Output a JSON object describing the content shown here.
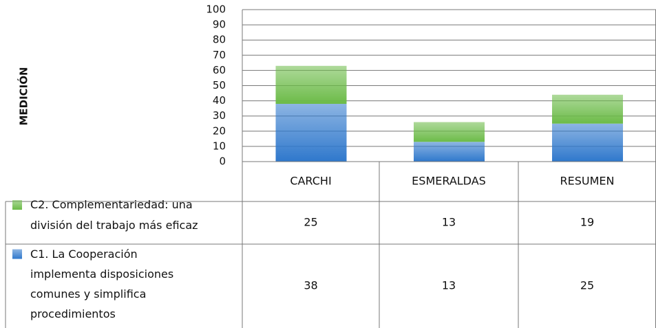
{
  "chart_data": {
    "type": "bar",
    "stacked": true,
    "y_label": "MEDICIÓN",
    "categories": [
      "CARCHI",
      "ESMERALDAS",
      "RESUMEN"
    ],
    "series": [
      {
        "name": "C1. La Cooperación implementa disposiciones comunes y simplifica procedimientos",
        "color": "#2f78cc",
        "values": [
          38,
          13,
          25
        ]
      },
      {
        "name": "C2. Complementariedad: una división del trabajo más eficaz",
        "color": "#6cbb48",
        "values": [
          25,
          13,
          19
        ]
      }
    ],
    "ylim": [
      0,
      100
    ],
    "yticks": [
      0,
      10,
      20,
      30,
      40,
      50,
      60,
      70,
      80,
      90,
      100
    ],
    "grid": true
  }
}
